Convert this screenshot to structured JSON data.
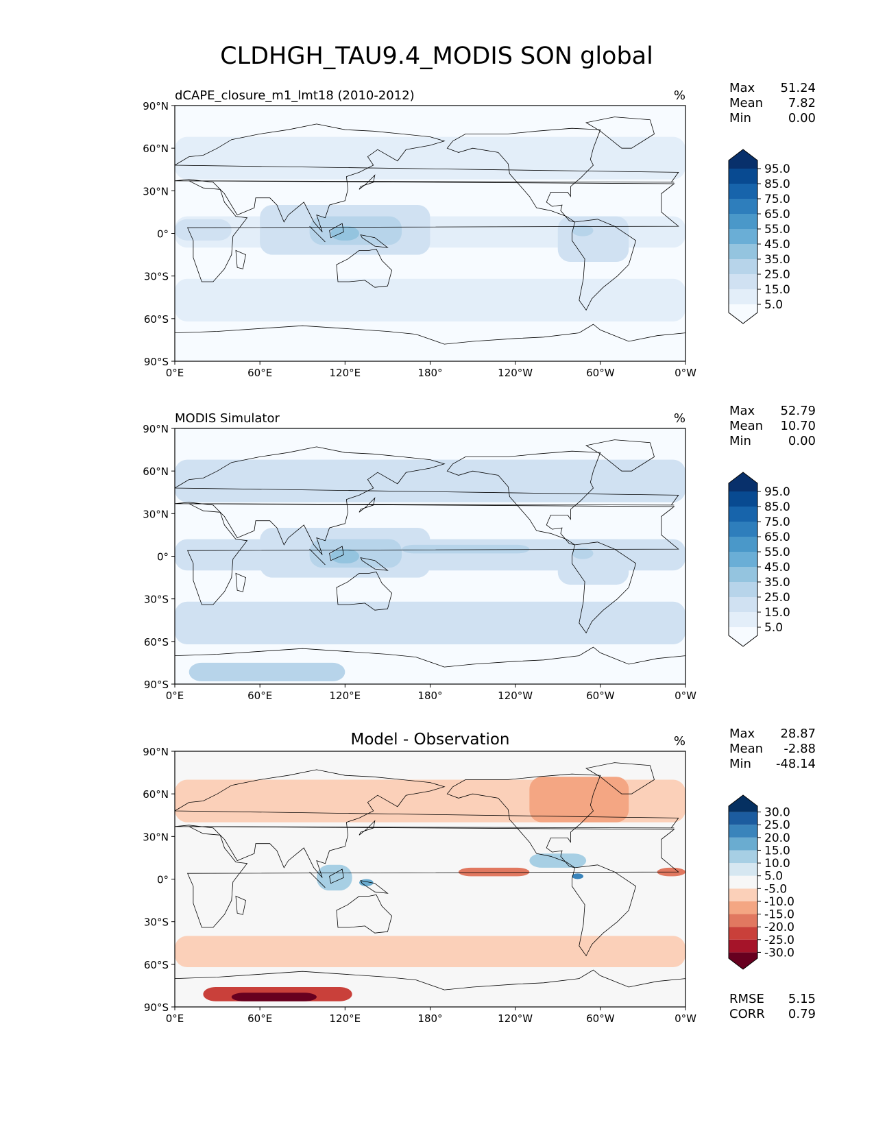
{
  "figure": {
    "title": "CLDHGH_TAU9.4_MODIS SON global"
  },
  "axes": {
    "lat_ticks": [
      "90°N",
      "60°N",
      "30°N",
      "0°",
      "30°S",
      "60°S",
      "90°S"
    ],
    "lon_ticks": [
      "0°E",
      "60°E",
      "120°E",
      "180°",
      "120°W",
      "60°W",
      "0°W"
    ]
  },
  "chart_data": [
    {
      "type": "heatmap",
      "title": "dCAPE_closure_m1_lmt18 (2010-2012)",
      "units": "%",
      "stats": [
        {
          "label": "Max",
          "value": "51.24"
        },
        {
          "label": "Mean",
          "value": "7.82"
        },
        {
          "label": "Min",
          "value": "0.00"
        }
      ],
      "colorbar": {
        "levels": [
          "95.0",
          "85.0",
          "75.0",
          "65.0",
          "55.0",
          "45.0",
          "35.0",
          "25.0",
          "15.0",
          "5.0"
        ],
        "colors": [
          "#f7fbff",
          "#e3eef9",
          "#d0e1f2",
          "#b7d4ea",
          "#94c4df",
          "#6aaed6",
          "#4a98c9",
          "#2e7ebc",
          "#1764ab",
          "#084a91",
          "#08306b"
        ]
      },
      "xlim": [
        0,
        360
      ],
      "ylim": [
        -90,
        90
      ]
    },
    {
      "type": "heatmap",
      "title": "MODIS Simulator",
      "units": "%",
      "stats": [
        {
          "label": "Max",
          "value": "52.79"
        },
        {
          "label": "Mean",
          "value": "10.70"
        },
        {
          "label": "Min",
          "value": "0.00"
        }
      ],
      "colorbar": {
        "levels": [
          "95.0",
          "85.0",
          "75.0",
          "65.0",
          "55.0",
          "45.0",
          "35.0",
          "25.0",
          "15.0",
          "5.0"
        ],
        "colors": [
          "#f7fbff",
          "#e3eef9",
          "#d0e1f2",
          "#b7d4ea",
          "#94c4df",
          "#6aaed6",
          "#4a98c9",
          "#2e7ebc",
          "#1764ab",
          "#084a91",
          "#08306b"
        ]
      },
      "xlim": [
        0,
        360
      ],
      "ylim": [
        -90,
        90
      ]
    },
    {
      "type": "heatmap",
      "title": "Model - Observation",
      "units": "%",
      "stats": [
        {
          "label": "Max",
          "value": "28.87"
        },
        {
          "label": "Mean",
          "value": "-2.88"
        },
        {
          "label": "Min",
          "value": "-48.14"
        }
      ],
      "colorbar": {
        "levels": [
          "30.0",
          "25.0",
          "20.0",
          "15.0",
          "10.0",
          "5.0",
          "-5.0",
          "-10.0",
          "-15.0",
          "-20.0",
          "-25.0",
          "-30.0"
        ],
        "colors": [
          "#67001f",
          "#a51429",
          "#c9403a",
          "#e17860",
          "#f4a683",
          "#fbd0b9",
          "#f7f7f7",
          "#d6e7f1",
          "#a7cfe4",
          "#6aacd0",
          "#3a84bb",
          "#1c5c9f",
          "#053061"
        ]
      },
      "metrics": [
        {
          "label": "RMSE",
          "value": "5.15"
        },
        {
          "label": "CORR",
          "value": "0.79"
        }
      ],
      "xlim": [
        0,
        360
      ],
      "ylim": [
        -90,
        90
      ]
    }
  ]
}
